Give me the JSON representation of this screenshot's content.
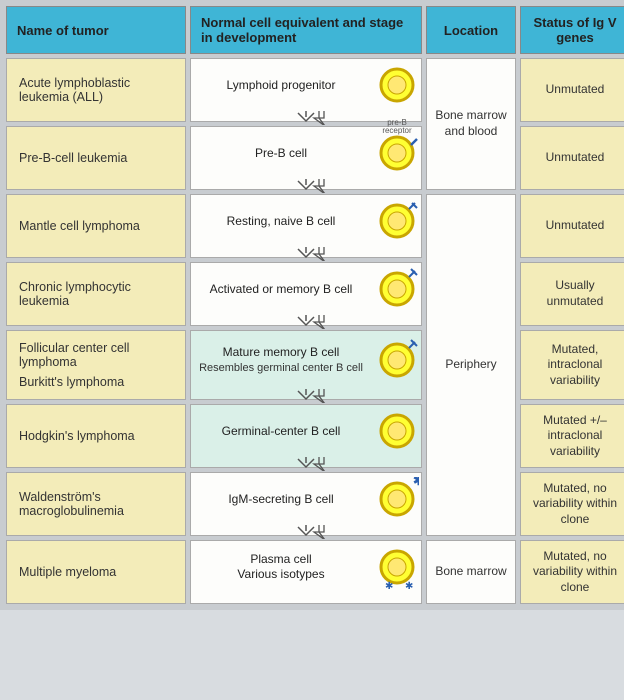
{
  "colors": {
    "header_bg": "#3fb5d6",
    "name_bg": "#f3ecb9",
    "status_bg": "#f3ecb9",
    "cell_bg": "#fdfdfb",
    "alt_bg": "#daf0e8",
    "page_bg": "#c8ccd0",
    "border": "#aaaaaa",
    "cell_fill": "#ffff33",
    "cell_stroke": "#c9a600",
    "nucleus": "#ffe873",
    "receptor": "#2a5fb0",
    "arrow": "#555555"
  },
  "headers": {
    "name": "Name of tumor",
    "stage": "Normal cell equivalent and stage in development",
    "location": "Location",
    "status": "Status of Ig V genes"
  },
  "rows": [
    {
      "name": "Acute lymphoblastic leukemia (ALL)",
      "stage": "Lymphoid progenitor",
      "receptor": "none",
      "status": "Unmutated",
      "alt": false,
      "arrow": true
    },
    {
      "name": "Pre-B-cell leukemia",
      "stage": "Pre-B cell",
      "receptor": "stub",
      "receptor_label": "pre-B receptor",
      "status": "Unmutated",
      "alt": false,
      "arrow": true
    },
    {
      "name": "Mantle cell lymphoma",
      "stage": "Resting, naive B cell",
      "receptor": "igm",
      "status": "Unmutated",
      "alt": false,
      "arrow": true
    },
    {
      "name": "Chronic lymphocytic leukemia",
      "stage": "Activated or memory B cell",
      "receptor": "igd",
      "status": "Usually unmutated",
      "alt": false,
      "arrow": true
    },
    {
      "name": "Follicular center cell lymphoma\nBurkitt's lymphoma",
      "stage": "Mature memory B cell",
      "stage_sub": "Resembles germinal center B cell",
      "receptor": "igd",
      "status": "Mutated, intraclonal variability",
      "alt": true,
      "arrow": true
    },
    {
      "name": "Hodgkin's lymphoma",
      "stage": "Germinal-center B cell",
      "receptor": "none",
      "status": "Mutated +/– intraclonal variability",
      "alt": true,
      "arrow": true
    },
    {
      "name": "Waldenström's macroglobulinemia",
      "stage": "IgM-secreting B cell",
      "receptor": "star",
      "status": "Mutated, no variability within clone",
      "alt": false,
      "arrow": true
    },
    {
      "name": "Multiple myeloma",
      "stage": "Plasma cell\nVarious isotypes",
      "receptor": "stars-below",
      "status": "Mutated, no variability within clone",
      "alt": false,
      "arrow": false
    }
  ],
  "locations": [
    {
      "label": "Bone marrow and blood",
      "span": 2
    },
    {
      "label": "Periphery",
      "span": 5
    },
    {
      "label": "Bone marrow",
      "span": 1
    }
  ]
}
